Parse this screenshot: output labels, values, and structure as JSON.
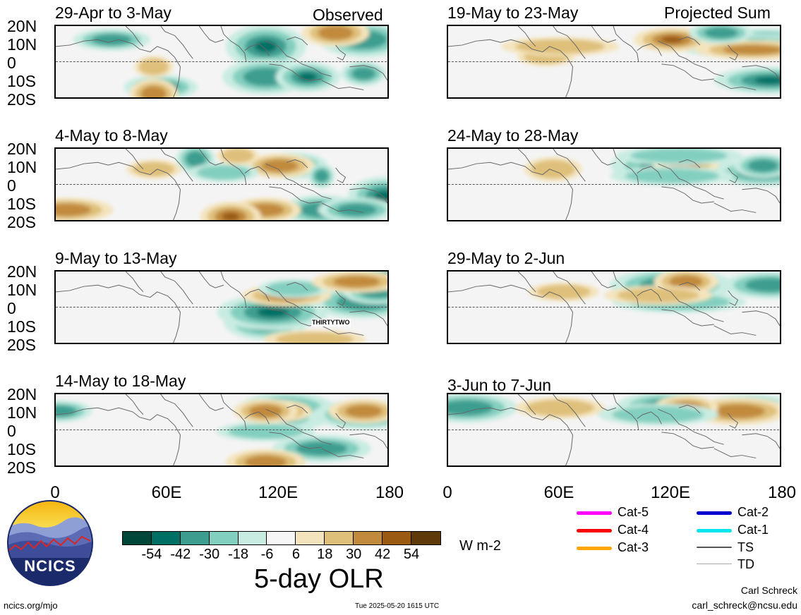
{
  "panels": [
    {
      "title": "29-Apr to 3-May",
      "tag": "Observed",
      "blobs": [
        [
          30,
          300,
          105,
          55,
          28,
          "neg"
        ],
        [
          20,
          440,
          120,
          40,
          22,
          "neg"
        ],
        [
          300,
          150,
          95,
          30,
          14,
          "neg"
        ],
        [
          310,
          140,
          55,
          38,
          18,
          "pos"
        ],
        [
          175,
          440,
          50,
          30,
          14,
          "neg"
        ],
        [
          220,
          400,
          85,
          40,
          16,
          "pos"
        ],
        [
          180,
          300,
          115,
          35,
          22,
          "neg"
        ],
        [
          75,
          360,
          80,
          42,
          18,
          "neg"
        ],
        [
          60,
          140,
          40,
          20,
          12,
          "pos"
        ],
        [
          20,
          80,
          100,
          28,
          12,
          "neg"
        ]
      ]
    },
    {
      "title": "19-May to 23-May",
      "tag": "Projected Sum",
      "blobs": [
        [
          20,
          450,
          135,
          30,
          12,
          "neg"
        ],
        [
          80,
          460,
          155,
          45,
          16,
          "neg"
        ],
        [
          30,
          435,
          215,
          40,
          14,
          "neg"
        ],
        [
          35,
          455,
          85,
          25,
          10,
          "pos"
        ],
        [
          45,
          140,
          70,
          26,
          10,
          "pos"
        ],
        [
          35,
          435,
          160,
          28,
          10,
          "pos"
        ],
        [
          20,
          320,
          100,
          50,
          14,
          "pos"
        ],
        [
          30,
          160,
          165,
          25,
          10,
          "pos"
        ],
        [
          10,
          390,
          80,
          30,
          12,
          "neg"
        ]
      ]
    },
    {
      "title": "4-May to 8-May",
      "tag": "",
      "blobs": [
        [
          225,
          200,
          40,
          40,
          18,
          "neg"
        ],
        [
          25,
          340,
          85,
          30,
          16,
          "neg"
        ],
        [
          195,
          380,
          110,
          40,
          18,
          "neg"
        ],
        [
          175,
          470,
          95,
          55,
          25,
          "neg"
        ],
        [
          90,
          490,
          125,
          28,
          14,
          "pos"
        ],
        [
          25,
          320,
          90,
          35,
          14,
          "pos"
        ],
        [
          35,
          240,
          90,
          22,
          10,
          "neg"
        ],
        [
          30,
          140,
          65,
          22,
          10,
          "pos"
        ],
        [
          300,
          430,
          100,
          40,
          14,
          "neg"
        ],
        [
          300,
          300,
          90,
          30,
          14,
          "pos"
        ],
        [
          100,
          250,
          75,
          45,
          18,
          "pos"
        ],
        [
          10,
          260,
          45,
          20,
          10,
          "pos"
        ],
        [
          250,
          380,
          20,
          32,
          14,
          "neg"
        ]
      ]
    },
    {
      "title": "24-May to 28-May",
      "tag": "",
      "blobs": [
        [
          25,
          320,
          175,
          40,
          20,
          "neg"
        ],
        [
          35,
          450,
          140,
          40,
          16,
          "neg"
        ],
        [
          30,
          150,
          70,
          26,
          14,
          "pos"
        ],
        [
          20,
          340,
          85,
          34,
          16,
          "pos"
        ],
        [
          25,
          450,
          70,
          28,
          14,
          "neg"
        ],
        [
          40,
          320,
          175,
          25,
          10,
          "neg"
        ],
        [
          10,
          330,
          180,
          25,
          10,
          "neg"
        ]
      ]
    },
    {
      "title": "9-May to 13-May",
      "tag": "",
      "blobs": [
        [
          40,
          440,
          40,
          30,
          12,
          "neg"
        ],
        [
          75,
          300,
          110,
          55,
          22,
          "neg"
        ],
        [
          150,
          440,
          145,
          40,
          20,
          "neg"
        ],
        [
          60,
          310,
          155,
          50,
          22,
          "neg"
        ],
        [
          15,
          450,
          120,
          35,
          15,
          "neg"
        ],
        [
          100,
          370,
          140,
          20,
          10,
          "pos"
        ],
        [
          30,
          460,
          90,
          28,
          14,
          "neg"
        ],
        [
          10,
          470,
          75,
          40,
          14,
          "neg"
        ],
        [
          35,
          330,
          120,
          30,
          12,
          "pos"
        ],
        [
          25,
          340,
          90,
          25,
          10,
          "neg"
        ],
        [
          15,
          430,
          120,
          32,
          12,
          "pos"
        ]
      ]
    },
    {
      "title": "29-May to 2-Jun",
      "tag": "",
      "blobs": [
        [
          20,
          320,
          175,
          40,
          20,
          "neg"
        ],
        [
          20,
          460,
          130,
          35,
          16,
          "neg"
        ],
        [
          30,
          165,
          90,
          25,
          10,
          "pos"
        ],
        [
          15,
          340,
          80,
          30,
          14,
          "pos"
        ],
        [
          45,
          330,
          190,
          25,
          12,
          "neg"
        ],
        [
          35,
          300,
          150,
          25,
          10,
          "pos"
        ]
      ]
    },
    {
      "title": "14-May to 18-May",
      "tag": "",
      "blobs": [
        [
          25,
          330,
          135,
          50,
          25,
          "neg"
        ],
        [
          185,
          380,
          135,
          35,
          16,
          "neg"
        ],
        [
          135,
          440,
          140,
          40,
          18,
          "neg"
        ],
        [
          100,
          300,
          105,
          35,
          15,
          "pos"
        ],
        [
          25,
          440,
          90,
          32,
          14,
          "pos"
        ],
        [
          35,
          320,
          100,
          30,
          12,
          "neg"
        ],
        [
          55,
          300,
          135,
          20,
          10,
          "neg"
        ],
        [
          25,
          320,
          80,
          30,
          12,
          "pos"
        ],
        [
          25,
          300,
          80,
          28,
          14,
          "pos"
        ],
        [
          25,
          480,
          80,
          28,
          12,
          "neg"
        ]
      ]
    },
    {
      "title": "3-Jun to 7-Jun",
      "tag": "",
      "blobs": [
        [
          20,
          310,
          135,
          50,
          20,
          "neg"
        ],
        [
          20,
          500,
          140,
          35,
          18,
          "neg"
        ],
        [
          20,
          430,
          125,
          35,
          16,
          "neg"
        ],
        [
          25,
          415,
          140,
          35,
          16,
          "pos"
        ],
        [
          20,
          340,
          80,
          30,
          14,
          "pos"
        ],
        [
          20,
          160,
          120,
          26,
          12,
          "pos"
        ],
        [
          30,
          300,
          170,
          25,
          12,
          "neg"
        ]
      ]
    }
  ],
  "y_labels": [
    "20N",
    "10N",
    "0",
    "10S",
    "20S"
  ],
  "x_labels": [
    "0",
    "60E",
    "120E",
    "180"
  ],
  "annotation": "THIRTYTWO",
  "colorbar": {
    "colors": [
      "#00473a",
      "#007065",
      "#3d9e90",
      "#83cfbf",
      "#c9ece2",
      "#f6f6f6",
      "#f4e4bd",
      "#dfc07a",
      "#c18a3c",
      "#9a5a12",
      "#5e3a0a"
    ],
    "labels": [
      "-54",
      "-42",
      "-30",
      "-18",
      "-6",
      "6",
      "18",
      "30",
      "42",
      "54"
    ],
    "units": "W m-2",
    "title": "5-day OLR"
  },
  "legend": {
    "items": [
      {
        "label": "Cat-5",
        "color": "#ff00ff"
      },
      {
        "label": "Cat-4",
        "color": "#ff0000"
      },
      {
        "label": "Cat-3",
        "color": "#ffa500"
      },
      {
        "label": "Cat-2",
        "color": "#0000cc"
      },
      {
        "label": "Cat-1",
        "color": "#00e5ee"
      },
      {
        "label": "TS",
        "color": "#555555"
      },
      {
        "label": "TD",
        "color": "#aaaaaa"
      }
    ]
  },
  "logo": {
    "text": "NCICS"
  },
  "footer": {
    "left": "ncics.org/mjo",
    "center": "Tue 2025-05-20 1615 UTC",
    "author": "Carl Schreck",
    "email": "carl_schreck@ncsu.edu"
  }
}
